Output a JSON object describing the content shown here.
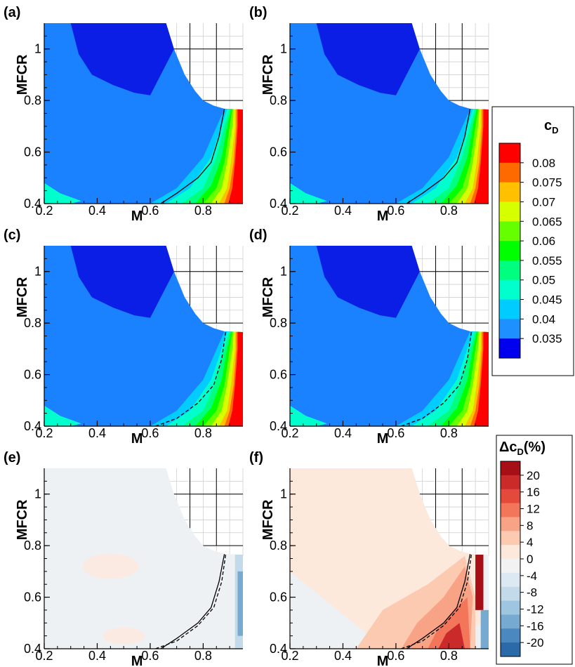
{
  "chart_data": [
    {
      "panel": "(a)",
      "type": "heatmap",
      "xlabel": "M",
      "ylabel": "MFCR",
      "xlim": [
        0.2,
        0.95
      ],
      "ylim": [
        0.4,
        1.1
      ],
      "xticks": [
        "0.2",
        "0.4",
        "0.6",
        "0.8"
      ],
      "yticks": [
        "0.4",
        "0.6",
        "0.8",
        "1"
      ],
      "field": "cD",
      "contour_line": "solid",
      "colorbar": "cD"
    },
    {
      "panel": "(b)",
      "type": "heatmap",
      "xlabel": "M",
      "ylabel": "MFCR",
      "xlim": [
        0.2,
        0.95
      ],
      "ylim": [
        0.4,
        1.1
      ],
      "xticks": [
        "0.2",
        "0.4",
        "0.6",
        "0.8"
      ],
      "yticks": [
        "0.4",
        "0.6",
        "0.8",
        "1"
      ],
      "field": "cD",
      "contour_line": "solid",
      "colorbar": "cD"
    },
    {
      "panel": "(c)",
      "type": "heatmap",
      "xlabel": "M",
      "ylabel": "MFCR",
      "xlim": [
        0.2,
        0.95
      ],
      "ylim": [
        0.4,
        1.1
      ],
      "xticks": [
        "0.2",
        "0.4",
        "0.6",
        "0.8"
      ],
      "yticks": [
        "0.4",
        "0.6",
        "0.8",
        "1"
      ],
      "field": "cD",
      "contour_line": "dashed",
      "colorbar": "cD"
    },
    {
      "panel": "(d)",
      "type": "heatmap",
      "xlabel": "M",
      "ylabel": "MFCR",
      "xlim": [
        0.2,
        0.95
      ],
      "ylim": [
        0.4,
        1.1
      ],
      "xticks": [
        "0.2",
        "0.4",
        "0.6",
        "0.8"
      ],
      "yticks": [
        "0.4",
        "0.6",
        "0.8",
        "1"
      ],
      "field": "cD",
      "contour_line": "dashed",
      "colorbar": "cD"
    },
    {
      "panel": "(e)",
      "type": "heatmap",
      "xlabel": "M",
      "ylabel": "MFCR",
      "xlim": [
        0.2,
        0.95
      ],
      "ylim": [
        0.4,
        1.1
      ],
      "xticks": [
        "0.2",
        "0.4",
        "0.6",
        "0.8"
      ],
      "yticks": [
        "0.4",
        "0.6",
        "0.8",
        "1"
      ],
      "field": "ΔcD(%)",
      "contour_line": "solid and dashed",
      "colorbar": "ΔcD(%)"
    },
    {
      "panel": "(f)",
      "type": "heatmap",
      "xlabel": "M",
      "ylabel": "MFCR",
      "xlim": [
        0.2,
        0.95
      ],
      "ylim": [
        0.4,
        1.1
      ],
      "xticks": [
        "0.2",
        "0.4",
        "0.6",
        "0.8"
      ],
      "yticks": [
        "0.4",
        "0.6",
        "0.8",
        "1"
      ],
      "field": "ΔcD(%)",
      "contour_line": "solid and dashed",
      "colorbar": "ΔcD(%)"
    }
  ],
  "panels": [
    {
      "label": "(a)"
    },
    {
      "label": "(b)"
    },
    {
      "label": "(c)"
    },
    {
      "label": "(d)"
    },
    {
      "label": "(e)"
    },
    {
      "label": "(f)"
    }
  ],
  "axis": {
    "xlabel": "M",
    "ylabel": "MFCR",
    "xticks": [
      "0.2",
      "0.4",
      "0.6",
      "0.8"
    ],
    "yticks": [
      "0.4",
      "0.6",
      "0.8",
      "1"
    ]
  },
  "legend_cd": {
    "title": "c",
    "subscript": "D",
    "labels": [
      "0.08",
      "0.075",
      "0.07",
      "0.065",
      "0.06",
      "0.055",
      "0.05",
      "0.045",
      "0.04",
      "0.035"
    ],
    "colors": [
      "#ff0000",
      "#ff6a00",
      "#ffc000",
      "#d6ff00",
      "#66ff00",
      "#00ff00",
      "#00ff7f",
      "#00ffcc",
      "#00ccff",
      "#1e90ff",
      "#0000ee"
    ]
  },
  "legend_dcd": {
    "title": "Δc",
    "subscript": "D",
    "suffix": "(%)",
    "labels": [
      "20",
      "16",
      "12",
      "8",
      "4",
      "0",
      "-4",
      "-8",
      "-12",
      "-16",
      "-20"
    ],
    "colors": [
      "#a50f15",
      "#cb2a2a",
      "#e34a3c",
      "#f4765a",
      "#f9a386",
      "#fcc9b1",
      "#fde8dc",
      "#f2f2f2",
      "#dde9f2",
      "#c2daea",
      "#9fc6e0",
      "#76aad1",
      "#4b88bf",
      "#2a6aa8"
    ]
  },
  "colors": {
    "cd_base": "#1a82ff",
    "cd_dark": "#0a1ee6",
    "cd_light": "#1cb6f5",
    "grid": "#000000",
    "dcd_base": "#eef1f4"
  }
}
